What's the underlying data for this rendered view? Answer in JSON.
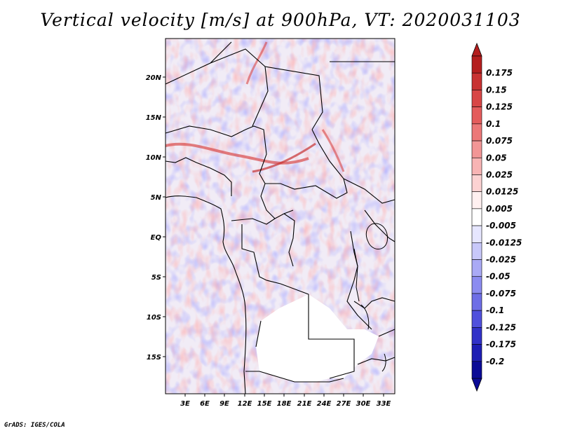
{
  "title": "Vertical velocity [m/s] at 900hPa, VT: 2020031103",
  "footer": "GrADS: IGES/COLA",
  "map": {
    "lat_labels": [
      "20N",
      "15N",
      "10N",
      "5N",
      "EQ",
      "5S",
      "10S",
      "15S"
    ],
    "lon_labels": [
      "3E",
      "6E",
      "9E",
      "12E",
      "15E",
      "18E",
      "21E",
      "24E",
      "27E",
      "30E",
      "33E"
    ]
  },
  "colorbar": {
    "labels": [
      "0.175",
      "0.15",
      "0.125",
      "0.1",
      "0.075",
      "0.05",
      "0.025",
      "0.0125",
      "0.005",
      "-0.005",
      "-0.0125",
      "-0.025",
      "-0.05",
      "-0.075",
      "-0.1",
      "-0.125",
      "-0.175",
      "-0.2"
    ],
    "colors": [
      "#b41e1e",
      "#c83232",
      "#d84646",
      "#e45c5c",
      "#ec7878",
      "#f29696",
      "#f8b4b4",
      "#fcd2d2",
      "#fff0f0",
      "#ffffff",
      "#e6e6ff",
      "#c8c8fa",
      "#aaaaf5",
      "#8c8cf0",
      "#6e6ee6",
      "#5050dc",
      "#3232c8",
      "#1e1eb4",
      "#0a0a96"
    ]
  }
}
